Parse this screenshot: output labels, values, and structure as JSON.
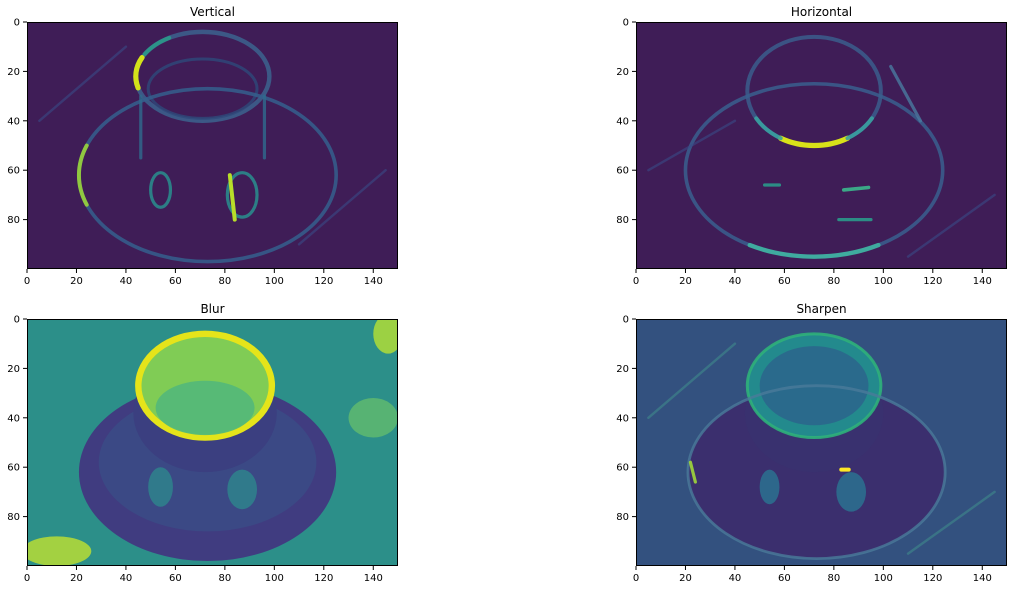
{
  "chart_data": [
    {
      "type": "heatmap",
      "title": "Vertical",
      "xlabel": "",
      "ylabel": "",
      "xlim": [
        0,
        150
      ],
      "ylim": [
        0,
        100
      ],
      "y_inverted": true,
      "xticks": [
        0,
        20,
        40,
        60,
        80,
        100,
        120,
        140
      ],
      "yticks": [
        0,
        20,
        40,
        60,
        80
      ],
      "colormap": "viridis",
      "background": "#3f1d57",
      "features": [
        {
          "kind": "ellipse",
          "cx": 71,
          "cy": 22,
          "rx": 27,
          "ry": 18,
          "color": "#3c5f8c",
          "w": 2.2,
          "op": 0.9
        },
        {
          "kind": "arc",
          "cx": 71,
          "cy": 22,
          "rx": 27,
          "ry": 18,
          "a0": 165,
          "a1": 205,
          "color": "#d4e21a",
          "w": 2.6,
          "op": 1
        },
        {
          "kind": "arc",
          "cx": 71,
          "cy": 22,
          "rx": 27,
          "ry": 18,
          "a0": 210,
          "a1": 240,
          "color": "#2a9a8a",
          "w": 2,
          "op": 0.9
        },
        {
          "kind": "ellipse",
          "cx": 71,
          "cy": 27,
          "rx": 22,
          "ry": 12,
          "color": "#2e4a7a",
          "w": 1.5,
          "op": 0.8
        },
        {
          "kind": "ellipse",
          "cx": 73,
          "cy": 62,
          "rx": 52,
          "ry": 35,
          "color": "#355f8d",
          "w": 1.8,
          "op": 0.85
        },
        {
          "kind": "arc",
          "cx": 73,
          "cy": 62,
          "rx": 52,
          "ry": 35,
          "a0": 160,
          "a1": 200,
          "color": "#9ad53a",
          "w": 2,
          "op": 0.9
        },
        {
          "kind": "line",
          "x1": 46,
          "y1": 30,
          "x2": 46,
          "y2": 55,
          "color": "#2f6b8e",
          "w": 1.6,
          "op": 0.8
        },
        {
          "kind": "line",
          "x1": 96,
          "y1": 30,
          "x2": 96,
          "y2": 55,
          "color": "#2f6b8e",
          "w": 1.6,
          "op": 0.8
        },
        {
          "kind": "ellipse",
          "cx": 54,
          "cy": 68,
          "rx": 4,
          "ry": 7,
          "color": "#2a8a8c",
          "w": 1.6,
          "op": 0.9
        },
        {
          "kind": "ellipse",
          "cx": 87,
          "cy": 70,
          "rx": 6,
          "ry": 9,
          "color": "#2a8a8c",
          "w": 1.6,
          "op": 0.9
        },
        {
          "kind": "line",
          "x1": 82,
          "y1": 62,
          "x2": 84,
          "y2": 80,
          "color": "#b8de29",
          "w": 2,
          "op": 1
        },
        {
          "kind": "line",
          "x1": 5,
          "y1": 40,
          "x2": 40,
          "y2": 10,
          "color": "#3a4a86",
          "w": 1.2,
          "op": 0.6
        },
        {
          "kind": "line",
          "x1": 110,
          "y1": 90,
          "x2": 145,
          "y2": 60,
          "color": "#3a4a86",
          "w": 1.2,
          "op": 0.6
        }
      ]
    },
    {
      "type": "heatmap",
      "title": "Horizontal",
      "xlabel": "",
      "ylabel": "",
      "xlim": [
        0,
        150
      ],
      "ylim": [
        0,
        100
      ],
      "y_inverted": true,
      "xticks": [
        0,
        20,
        40,
        60,
        80,
        100,
        120,
        140
      ],
      "yticks": [
        0,
        20,
        40,
        60,
        80
      ],
      "colormap": "viridis",
      "background": "#3f1d57",
      "features": [
        {
          "kind": "ellipse",
          "cx": 72,
          "cy": 28,
          "rx": 27,
          "ry": 22,
          "color": "#3b5a8a",
          "w": 2,
          "op": 0.9
        },
        {
          "kind": "arc",
          "cx": 72,
          "cy": 28,
          "rx": 27,
          "ry": 22,
          "a0": 60,
          "a1": 120,
          "color": "#d8e219",
          "w": 2.6,
          "op": 1
        },
        {
          "kind": "arc",
          "cx": 72,
          "cy": 28,
          "rx": 27,
          "ry": 22,
          "a0": 30,
          "a1": 60,
          "color": "#3aa0a0",
          "w": 2,
          "op": 0.9
        },
        {
          "kind": "arc",
          "cx": 72,
          "cy": 28,
          "rx": 27,
          "ry": 22,
          "a0": 120,
          "a1": 150,
          "color": "#3aa0a0",
          "w": 2,
          "op": 0.9
        },
        {
          "kind": "ellipse",
          "cx": 72,
          "cy": 60,
          "rx": 52,
          "ry": 35,
          "color": "#3a5f8e",
          "w": 1.8,
          "op": 0.85
        },
        {
          "kind": "arc",
          "cx": 72,
          "cy": 60,
          "rx": 52,
          "ry": 35,
          "a0": 60,
          "a1": 120,
          "color": "#3fb0a0",
          "w": 2.2,
          "op": 0.95
        },
        {
          "kind": "line",
          "x1": 103,
          "y1": 18,
          "x2": 115,
          "y2": 40,
          "color": "#4a7aa0",
          "w": 1.6,
          "op": 0.8
        },
        {
          "kind": "line",
          "x1": 52,
          "y1": 66,
          "x2": 58,
          "y2": 66,
          "color": "#2a9a8a",
          "w": 1.6,
          "op": 0.9
        },
        {
          "kind": "line",
          "x1": 84,
          "y1": 68,
          "x2": 94,
          "y2": 67,
          "color": "#3bb08a",
          "w": 1.8,
          "op": 0.95
        },
        {
          "kind": "line",
          "x1": 82,
          "y1": 80,
          "x2": 95,
          "y2": 80,
          "color": "#2a9a8a",
          "w": 1.6,
          "op": 0.9
        },
        {
          "kind": "line",
          "x1": 5,
          "y1": 60,
          "x2": 40,
          "y2": 40,
          "color": "#3a4a86",
          "w": 1.2,
          "op": 0.6
        },
        {
          "kind": "line",
          "x1": 110,
          "y1": 95,
          "x2": 145,
          "y2": 70,
          "color": "#3a4a86",
          "w": 1.2,
          "op": 0.6
        }
      ]
    },
    {
      "type": "heatmap",
      "title": "Blur",
      "xlabel": "",
      "ylabel": "",
      "xlim": [
        0,
        150
      ],
      "ylim": [
        0,
        100
      ],
      "y_inverted": true,
      "xticks": [
        0,
        20,
        40,
        60,
        80,
        100,
        120,
        140
      ],
      "yticks": [
        0,
        20,
        40,
        60,
        80
      ],
      "colormap": "viridis",
      "background": "#2c8f89",
      "features": [
        {
          "kind": "fill-ellipse",
          "cx": 73,
          "cy": 62,
          "rx": 52,
          "ry": 36,
          "color": "#403c80",
          "op": 1
        },
        {
          "kind": "fill-ellipse",
          "cx": 73,
          "cy": 58,
          "rx": 44,
          "ry": 28,
          "color": "#3b4a85",
          "op": 0.9
        },
        {
          "kind": "fill-ellipse",
          "cx": 72,
          "cy": 38,
          "rx": 29,
          "ry": 24,
          "color": "#3b3f80",
          "op": 1
        },
        {
          "kind": "fill-ellipse",
          "cx": 72,
          "cy": 27,
          "rx": 27,
          "ry": 21,
          "color": "#80cc55",
          "op": 1
        },
        {
          "kind": "ellipse",
          "cx": 72,
          "cy": 27,
          "rx": 27,
          "ry": 21,
          "color": "#e5e41a",
          "w": 3.2,
          "op": 1
        },
        {
          "kind": "fill-ellipse",
          "cx": 72,
          "cy": 36,
          "rx": 20,
          "ry": 11,
          "color": "#52b87a",
          "op": 0.9
        },
        {
          "kind": "fill-ellipse",
          "cx": 54,
          "cy": 68,
          "rx": 5,
          "ry": 8,
          "color": "#30808c",
          "op": 0.9
        },
        {
          "kind": "fill-ellipse",
          "cx": 87,
          "cy": 69,
          "rx": 6,
          "ry": 8,
          "color": "#30808c",
          "op": 0.9
        },
        {
          "kind": "fill-ellipse",
          "cx": 12,
          "cy": 94,
          "rx": 14,
          "ry": 6,
          "color": "#b0d83a",
          "op": 0.9
        },
        {
          "kind": "fill-ellipse",
          "cx": 146,
          "cy": 6,
          "rx": 6,
          "ry": 8,
          "color": "#a9d83c",
          "op": 0.9
        },
        {
          "kind": "fill-ellipse",
          "cx": 140,
          "cy": 40,
          "rx": 10,
          "ry": 8,
          "color": "#6ac26a",
          "op": 0.7
        }
      ]
    },
    {
      "type": "heatmap",
      "title": "Sharpen",
      "xlabel": "",
      "ylabel": "",
      "xlim": [
        0,
        150
      ],
      "ylim": [
        0,
        100
      ],
      "y_inverted": true,
      "xticks": [
        0,
        20,
        40,
        60,
        80,
        100,
        120,
        140
      ],
      "yticks": [
        0,
        20,
        40,
        60,
        80
      ],
      "colormap": "viridis",
      "background": "#33517f",
      "features": [
        {
          "kind": "fill-ellipse",
          "cx": 73,
          "cy": 62,
          "rx": 52,
          "ry": 35,
          "color": "#3b2f6e",
          "op": 1
        },
        {
          "kind": "fill-ellipse",
          "cx": 72,
          "cy": 38,
          "rx": 28,
          "ry": 24,
          "color": "#39316f",
          "op": 1
        },
        {
          "kind": "fill-ellipse",
          "cx": 72,
          "cy": 27,
          "rx": 27,
          "ry": 21,
          "color": "#238a8d",
          "op": 1
        },
        {
          "kind": "fill-ellipse",
          "cx": 72,
          "cy": 27,
          "rx": 22,
          "ry": 16,
          "color": "#2a6a8c",
          "op": 1
        },
        {
          "kind": "ellipse",
          "cx": 72,
          "cy": 27,
          "rx": 27,
          "ry": 21,
          "color": "#2fb07a",
          "w": 1.5,
          "op": 0.9
        },
        {
          "kind": "ellipse",
          "cx": 73,
          "cy": 62,
          "rx": 52,
          "ry": 35,
          "color": "#4a7a9a",
          "w": 1.4,
          "op": 0.8
        },
        {
          "kind": "fill-ellipse",
          "cx": 54,
          "cy": 68,
          "rx": 4,
          "ry": 7,
          "color": "#2c6e8e",
          "op": 0.9
        },
        {
          "kind": "fill-ellipse",
          "cx": 87,
          "cy": 70,
          "rx": 6,
          "ry": 8,
          "color": "#2c6e8e",
          "op": 0.9
        },
        {
          "kind": "line",
          "x1": 83,
          "y1": 61,
          "x2": 86,
          "y2": 61,
          "color": "#fde725",
          "w": 2,
          "op": 1
        },
        {
          "kind": "line",
          "x1": 22,
          "y1": 58,
          "x2": 24,
          "y2": 66,
          "color": "#a0d83a",
          "w": 1.6,
          "op": 0.9
        },
        {
          "kind": "line",
          "x1": 5,
          "y1": 40,
          "x2": 40,
          "y2": 10,
          "color": "#3f8a8c",
          "w": 1.2,
          "op": 0.6
        },
        {
          "kind": "line",
          "x1": 110,
          "y1": 95,
          "x2": 145,
          "y2": 70,
          "color": "#3f8a8c",
          "w": 1.2,
          "op": 0.6
        }
      ]
    }
  ]
}
